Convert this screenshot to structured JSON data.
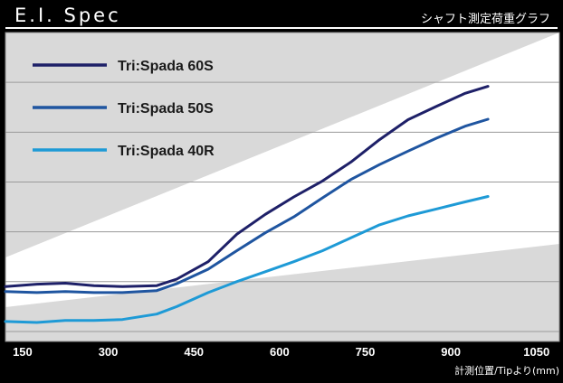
{
  "header": {
    "title": "E.I. Spec",
    "subtitle": "シャフト測定荷重グラフ"
  },
  "chart_data": {
    "type": "line",
    "title": "E.I. Spec",
    "subtitle": "シャフト測定荷重グラフ",
    "xlabel": "計測位置/Tipより(mm)",
    "ylabel": "",
    "x_ticks": [
      150,
      300,
      450,
      600,
      750,
      900,
      1050
    ],
    "xlim": [
      120,
      1090
    ],
    "y_ticks": [
      0,
      1,
      2,
      3,
      4,
      5,
      6,
      7
    ],
    "ylim": [
      0.8,
      7.0
    ],
    "grid": true,
    "legend_position": "top-left",
    "x": [
      120,
      175,
      225,
      275,
      325,
      385,
      420,
      475,
      525,
      575,
      625,
      675,
      725,
      775,
      825,
      875,
      925,
      965
    ],
    "series": [
      {
        "name": "Tri:Spada 60S",
        "color": "#1e2068",
        "values": [
          1.9,
          1.95,
          1.97,
          1.92,
          1.9,
          1.92,
          2.05,
          2.4,
          2.95,
          3.35,
          3.7,
          4.02,
          4.4,
          4.85,
          5.25,
          5.52,
          5.78,
          5.92
        ]
      },
      {
        "name": "Tri:Spada 50S",
        "color": "#1f55a0",
        "values": [
          1.8,
          1.78,
          1.8,
          1.78,
          1.78,
          1.82,
          1.96,
          2.25,
          2.62,
          2.98,
          3.3,
          3.68,
          4.05,
          4.35,
          4.62,
          4.88,
          5.12,
          5.26
        ]
      },
      {
        "name": "Tri:Spada 40R",
        "color": "#1e9ad6",
        "values": [
          1.2,
          1.18,
          1.22,
          1.22,
          1.24,
          1.35,
          1.5,
          1.78,
          2.0,
          2.2,
          2.4,
          2.62,
          2.88,
          3.14,
          3.32,
          3.46,
          3.6,
          3.71
        ]
      }
    ]
  }
}
